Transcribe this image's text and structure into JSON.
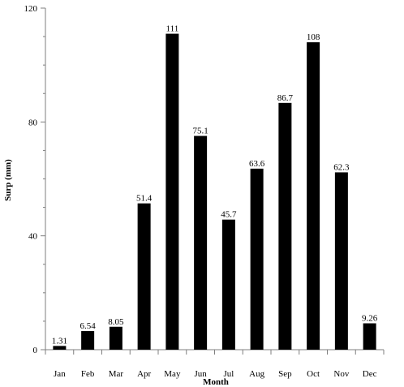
{
  "chart_data": {
    "type": "bar",
    "categories": [
      "Jan",
      "Feb",
      "Mar",
      "Apr",
      "May",
      "Jun",
      "Jul",
      "Aug",
      "Sep",
      "Oct",
      "Nov",
      "Dec"
    ],
    "values": [
      1.31,
      6.54,
      8.05,
      51.4,
      111,
      75.1,
      45.7,
      63.6,
      86.7,
      108,
      62.3,
      9.26
    ],
    "value_labels": [
      "1.31",
      "6.54",
      "8.05",
      "51.4",
      "111",
      "75.1",
      "45.7",
      "63.6",
      "86.7",
      "108",
      "62.3",
      "9.26"
    ],
    "xlabel": "Month",
    "ylabel": "Surp (mm)",
    "ylim": [
      0,
      120
    ],
    "yticks": [
      0,
      40,
      80,
      120
    ],
    "grid": false,
    "bar_color": "#000000",
    "axis_color": "#7f7f7f"
  }
}
